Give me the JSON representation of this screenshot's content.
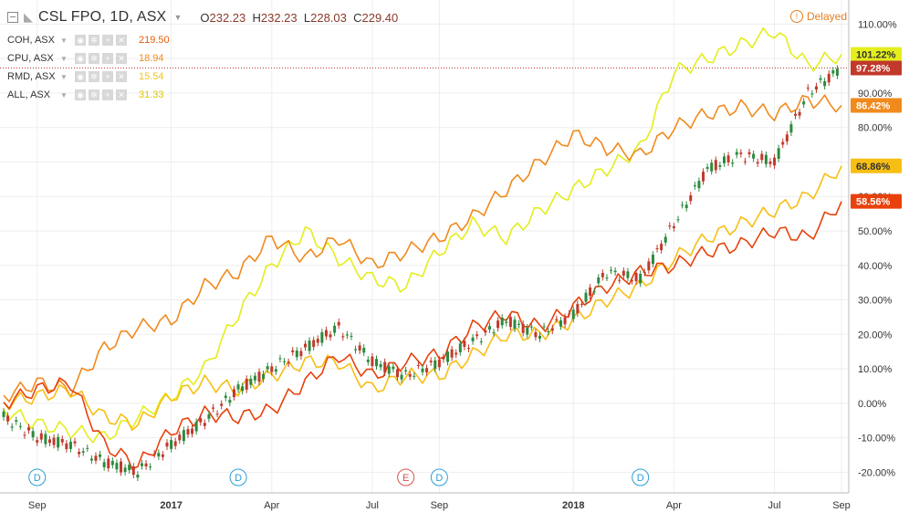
{
  "header": {
    "title": "CSL FPO, 1D, ASX",
    "open_label": "O",
    "open": "232.23",
    "high_label": "H",
    "high": "232.23",
    "low_label": "L",
    "low": "228.03",
    "close_label": "C",
    "close": "229.40"
  },
  "status": {
    "delayed": "Delayed"
  },
  "legend": [
    {
      "name": "COH, ASX",
      "value": "219.50",
      "color": "#e65c0a"
    },
    {
      "name": "CPU, ASX",
      "value": "18.94",
      "color": "#f08a1c"
    },
    {
      "name": "RMD, ASX",
      "value": "15.54",
      "color": "#f5c518"
    },
    {
      "name": "ALL, ASX",
      "value": "31.33",
      "color": "#e6e61a"
    }
  ],
  "colors": {
    "csl": "#2b8a3e",
    "csl_down": "#c0392b",
    "coh": "#e8410c",
    "cpu": "#f08a1c",
    "rmd": "#f7be14",
    "all": "#e3ee1c",
    "grid": "#eeeeee",
    "axis_text": "#333333"
  },
  "chart_data": {
    "type": "line",
    "ylim": [
      -26,
      117
    ],
    "y_ticks": [
      "110.00%",
      "100.00%",
      "90.00%",
      "80.00%",
      "70.00%",
      "60.00%",
      "50.00%",
      "40.00%",
      "30.00%",
      "20.00%",
      "10.00%",
      "0.00%",
      "-10.00%",
      "-20.00%"
    ],
    "y_tick_values": [
      110,
      100,
      90,
      80,
      70,
      60,
      50,
      40,
      30,
      20,
      10,
      0,
      -10,
      -20
    ],
    "x_ticks": [
      "Sep",
      "2017",
      "Apr",
      "Jul",
      "Sep",
      "2018",
      "Apr",
      "Jul",
      "Sep"
    ],
    "x_tick_values": [
      "2016-09",
      "2017-01",
      "2017-04",
      "2017-07",
      "2017-09",
      "2018-01",
      "2018-04",
      "2018-07",
      "2018-09"
    ],
    "x_range": [
      "2016-08",
      "2018-09"
    ],
    "grid": true,
    "events": [
      {
        "label": "D",
        "x": "2016-09",
        "color": "#2a9fd6"
      },
      {
        "label": "D",
        "x": "2017-03",
        "color": "#2a9fd6"
      },
      {
        "label": "E",
        "x": "2017-08",
        "color": "#d9534f"
      },
      {
        "label": "D",
        "x": "2017-09",
        "color": "#2a9fd6"
      },
      {
        "label": "D",
        "x": "2018-03",
        "color": "#2a9fd6"
      }
    ],
    "price_line": 97.28,
    "last_labels": [
      {
        "text": "101.22%",
        "value": 101.22,
        "bg": "#e3ee1c",
        "fg": "#333"
      },
      {
        "text": "97.28%",
        "value": 97.28,
        "bg": "#c0392b",
        "fg": "#fff"
      },
      {
        "text": "86.42%",
        "value": 86.42,
        "bg": "#f08a1c",
        "fg": "#fff"
      },
      {
        "text": "68.86%",
        "value": 68.86,
        "bg": "#f7be14",
        "fg": "#333"
      },
      {
        "text": "58.56%",
        "value": 58.56,
        "bg": "#e8410c",
        "fg": "#fff"
      }
    ],
    "series": [
      {
        "key": "csl",
        "style": "candles",
        "x": [
          0,
          0.04,
          0.08,
          0.12,
          0.16,
          0.2,
          0.24,
          0.28,
          0.32,
          0.36,
          0.4,
          0.44,
          0.48,
          0.52,
          0.56,
          0.6,
          0.64,
          0.68,
          0.72,
          0.76,
          0.8,
          0.84,
          0.88,
          0.92,
          0.96,
          1.0
        ],
        "values": [
          -4,
          -10,
          -12,
          -17,
          -20,
          -12,
          -5,
          4,
          10,
          16,
          22,
          12,
          8,
          12,
          18,
          24,
          20,
          26,
          38,
          36,
          52,
          68,
          72,
          70,
          90,
          97.28
        ]
      },
      {
        "key": "coh",
        "x": [
          0,
          0.04,
          0.08,
          0.12,
          0.16,
          0.2,
          0.24,
          0.28,
          0.32,
          0.36,
          0.4,
          0.44,
          0.48,
          0.52,
          0.56,
          0.6,
          0.64,
          0.68,
          0.72,
          0.76,
          0.8,
          0.84,
          0.88,
          0.92,
          0.96,
          1.0
        ],
        "values": [
          0,
          4,
          6,
          -12,
          -18,
          -8,
          -3,
          -4,
          -2,
          6,
          14,
          8,
          12,
          14,
          22,
          26,
          22,
          28,
          34,
          38,
          40,
          44,
          46,
          50,
          48,
          58.56
        ]
      },
      {
        "key": "cpu",
        "x": [
          0,
          0.04,
          0.08,
          0.12,
          0.16,
          0.2,
          0.24,
          0.28,
          0.32,
          0.36,
          0.4,
          0.44,
          0.48,
          0.52,
          0.56,
          0.6,
          0.64,
          0.68,
          0.72,
          0.76,
          0.8,
          0.84,
          0.88,
          0.92,
          0.96,
          1.0
        ],
        "values": [
          2,
          6,
          4,
          16,
          22,
          24,
          34,
          38,
          48,
          42,
          48,
          40,
          44,
          48,
          54,
          62,
          70,
          78,
          74,
          72,
          80,
          84,
          86,
          84,
          88,
          86.42
        ]
      },
      {
        "key": "rmd",
        "x": [
          0,
          0.04,
          0.08,
          0.12,
          0.16,
          0.2,
          0.24,
          0.28,
          0.32,
          0.36,
          0.4,
          0.44,
          0.48,
          0.52,
          0.56,
          0.6,
          0.64,
          0.68,
          0.72,
          0.76,
          0.8,
          0.84,
          0.88,
          0.92,
          0.96,
          1.0
        ],
        "values": [
          0,
          2,
          4,
          -4,
          -6,
          2,
          6,
          4,
          8,
          12,
          12,
          4,
          8,
          8,
          14,
          20,
          20,
          24,
          30,
          34,
          42,
          48,
          52,
          56,
          60,
          68.86
        ]
      },
      {
        "key": "all",
        "x": [
          0,
          0.04,
          0.08,
          0.12,
          0.16,
          0.2,
          0.24,
          0.28,
          0.32,
          0.36,
          0.4,
          0.44,
          0.48,
          0.52,
          0.56,
          0.6,
          0.64,
          0.68,
          0.72,
          0.76,
          0.8,
          0.84,
          0.88,
          0.92,
          0.96,
          1.0
        ],
        "values": [
          -2,
          -6,
          -8,
          -10,
          -4,
          2,
          10,
          26,
          40,
          50,
          42,
          36,
          34,
          44,
          52,
          48,
          56,
          62,
          68,
          74,
          96,
          100,
          104,
          108,
          98,
          101.22
        ]
      }
    ]
  }
}
